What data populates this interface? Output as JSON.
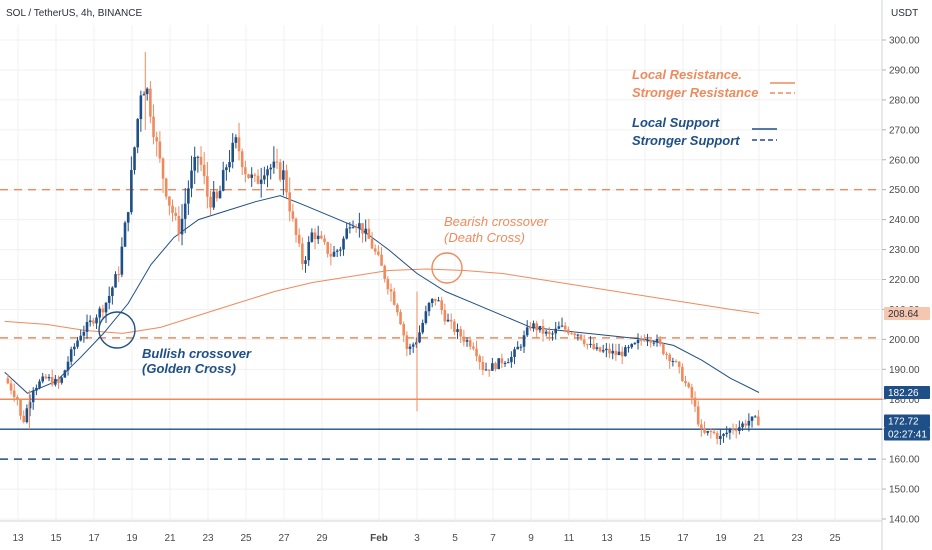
{
  "header": {
    "symbol": "SOL / TetherUS, 4h, BINANCE",
    "axis_unit": "USDT"
  },
  "chart_data": {
    "type": "candlestick",
    "ylim": [
      135,
      305
    ],
    "y_ticks": [
      140,
      150,
      160,
      170,
      180,
      190,
      200,
      210,
      220,
      230,
      240,
      250,
      260,
      270,
      280,
      290,
      300
    ],
    "y_tick_labels": [
      "140.00",
      "150.00",
      "160.00",
      "170.00",
      "180.00",
      "190.00",
      "200.00",
      "210.00",
      "220.00",
      "230.00",
      "240.00",
      "250.00",
      "260.00",
      "270.00",
      "280.00",
      "290.00",
      "300.00"
    ],
    "x_ticks": [
      {
        "label": "13",
        "day": 0
      },
      {
        "label": "15",
        "day": 2
      },
      {
        "label": "17",
        "day": 4
      },
      {
        "label": "19",
        "day": 6
      },
      {
        "label": "21",
        "day": 8
      },
      {
        "label": "23",
        "day": 10
      },
      {
        "label": "25",
        "day": 12
      },
      {
        "label": "27",
        "day": 14
      },
      {
        "label": "29",
        "day": 16
      },
      {
        "label": "Feb",
        "day": 19
      },
      {
        "label": "3",
        "day": 21
      },
      {
        "label": "5",
        "day": 23
      },
      {
        "label": "7",
        "day": 25
      },
      {
        "label": "9",
        "day": 27
      },
      {
        "label": "11",
        "day": 29
      },
      {
        "label": "13",
        "day": 31
      },
      {
        "label": "15",
        "day": 33
      },
      {
        "label": "17",
        "day": 35
      },
      {
        "label": "19",
        "day": 37
      },
      {
        "label": "21",
        "day": 39
      },
      {
        "label": "23",
        "day": 41
      },
      {
        "label": "25",
        "day": 43
      }
    ],
    "daily_closes": [
      {
        "day": -0.7,
        "price": 187
      },
      {
        "day": 0.0,
        "price": 180
      },
      {
        "day": 0.2,
        "price": 171
      },
      {
        "day": 0.8,
        "price": 184
      },
      {
        "day": 1.5,
        "price": 187
      },
      {
        "day": 2.2,
        "price": 185
      },
      {
        "day": 2.7,
        "price": 194
      },
      {
        "day": 3.3,
        "price": 202
      },
      {
        "day": 4.0,
        "price": 207
      },
      {
        "day": 4.7,
        "price": 213
      },
      {
        "day": 5.3,
        "price": 223
      },
      {
        "day": 5.8,
        "price": 245
      },
      {
        "day": 6.2,
        "price": 268
      },
      {
        "day": 6.5,
        "price": 285
      },
      {
        "day": 6.8,
        "price": 283
      },
      {
        "day": 7.2,
        "price": 268
      },
      {
        "day": 7.5,
        "price": 258
      },
      {
        "day": 8.0,
        "price": 245
      },
      {
        "day": 8.5,
        "price": 236
      },
      {
        "day": 9.0,
        "price": 252
      },
      {
        "day": 9.5,
        "price": 262
      },
      {
        "day": 10.0,
        "price": 247
      },
      {
        "day": 10.5,
        "price": 246
      },
      {
        "day": 11.0,
        "price": 259
      },
      {
        "day": 11.5,
        "price": 266
      },
      {
        "day": 12.0,
        "price": 256
      },
      {
        "day": 12.5,
        "price": 252
      },
      {
        "day": 13.0,
        "price": 258
      },
      {
        "day": 13.5,
        "price": 257
      },
      {
        "day": 14.0,
        "price": 255
      },
      {
        "day": 14.5,
        "price": 238
      },
      {
        "day": 15.0,
        "price": 225
      },
      {
        "day": 15.5,
        "price": 236
      },
      {
        "day": 16.0,
        "price": 232
      },
      {
        "day": 16.5,
        "price": 228
      },
      {
        "day": 17.0,
        "price": 231
      },
      {
        "day": 17.5,
        "price": 240
      },
      {
        "day": 18.0,
        "price": 238
      },
      {
        "day": 18.5,
        "price": 233
      },
      {
        "day": 19.0,
        "price": 226
      },
      {
        "day": 19.5,
        "price": 218
      },
      {
        "day": 20.0,
        "price": 210
      },
      {
        "day": 20.5,
        "price": 196
      },
      {
        "day": 21.0,
        "price": 200
      },
      {
        "day": 21.6,
        "price": 211
      },
      {
        "day": 22.0,
        "price": 214
      },
      {
        "day": 22.5,
        "price": 207
      },
      {
        "day": 23.0,
        "price": 203
      },
      {
        "day": 23.5,
        "price": 200
      },
      {
        "day": 24.0,
        "price": 198
      },
      {
        "day": 24.5,
        "price": 190
      },
      {
        "day": 25.0,
        "price": 191
      },
      {
        "day": 25.5,
        "price": 193
      },
      {
        "day": 26.0,
        "price": 194
      },
      {
        "day": 26.5,
        "price": 199
      },
      {
        "day": 27.0,
        "price": 205
      },
      {
        "day": 27.5,
        "price": 203
      },
      {
        "day": 28.0,
        "price": 201
      },
      {
        "day": 28.5,
        "price": 204
      },
      {
        "day": 29.0,
        "price": 203
      },
      {
        "day": 29.5,
        "price": 202
      },
      {
        "day": 30.0,
        "price": 198
      },
      {
        "day": 30.5,
        "price": 196
      },
      {
        "day": 31.0,
        "price": 196
      },
      {
        "day": 31.5,
        "price": 195
      },
      {
        "day": 32.0,
        "price": 196
      },
      {
        "day": 32.5,
        "price": 198
      },
      {
        "day": 33.0,
        "price": 201
      },
      {
        "day": 33.5,
        "price": 200
      },
      {
        "day": 34.0,
        "price": 196
      },
      {
        "day": 34.5,
        "price": 193
      },
      {
        "day": 35.0,
        "price": 187
      },
      {
        "day": 35.5,
        "price": 180
      },
      {
        "day": 36.0,
        "price": 168
      },
      {
        "day": 36.5,
        "price": 169
      },
      {
        "day": 37.0,
        "price": 167
      },
      {
        "day": 37.5,
        "price": 170
      },
      {
        "day": 38.0,
        "price": 171
      },
      {
        "day": 38.5,
        "price": 173
      },
      {
        "day": 39.0,
        "price": 172.7
      }
    ],
    "ma_fast": [
      {
        "day": -0.7,
        "price": 189
      },
      {
        "day": 0.5,
        "price": 182
      },
      {
        "day": 2.0,
        "price": 186
      },
      {
        "day": 3.3,
        "price": 194
      },
      {
        "day": 4.5,
        "price": 202
      },
      {
        "day": 5.8,
        "price": 212
      },
      {
        "day": 7.0,
        "price": 225
      },
      {
        "day": 8.2,
        "price": 234
      },
      {
        "day": 9.5,
        "price": 240
      },
      {
        "day": 11.0,
        "price": 243
      },
      {
        "day": 12.5,
        "price": 246
      },
      {
        "day": 13.8,
        "price": 248
      },
      {
        "day": 15.0,
        "price": 245
      },
      {
        "day": 16.5,
        "price": 241
      },
      {
        "day": 18.0,
        "price": 237
      },
      {
        "day": 19.5,
        "price": 230
      },
      {
        "day": 21.0,
        "price": 222
      },
      {
        "day": 22.5,
        "price": 216
      },
      {
        "day": 24.0,
        "price": 212
      },
      {
        "day": 25.5,
        "price": 208
      },
      {
        "day": 27.0,
        "price": 204
      },
      {
        "day": 28.5,
        "price": 203
      },
      {
        "day": 30.0,
        "price": 202
      },
      {
        "day": 31.5,
        "price": 201
      },
      {
        "day": 33.0,
        "price": 200
      },
      {
        "day": 34.5,
        "price": 198
      },
      {
        "day": 36.0,
        "price": 193
      },
      {
        "day": 37.5,
        "price": 187
      },
      {
        "day": 39.0,
        "price": 182.26
      }
    ],
    "ma_slow": [
      {
        "day": -0.7,
        "price": 206
      },
      {
        "day": 1.5,
        "price": 205
      },
      {
        "day": 3.5,
        "price": 203
      },
      {
        "day": 5.5,
        "price": 202
      },
      {
        "day": 7.5,
        "price": 204
      },
      {
        "day": 9.5,
        "price": 208
      },
      {
        "day": 11.5,
        "price": 212
      },
      {
        "day": 13.5,
        "price": 216
      },
      {
        "day": 15.5,
        "price": 219
      },
      {
        "day": 17.5,
        "price": 221
      },
      {
        "day": 19.5,
        "price": 223
      },
      {
        "day": 21.5,
        "price": 223.5
      },
      {
        "day": 23.5,
        "price": 223
      },
      {
        "day": 25.5,
        "price": 222
      },
      {
        "day": 27.5,
        "price": 220
      },
      {
        "day": 29.5,
        "price": 218
      },
      {
        "day": 31.5,
        "price": 216
      },
      {
        "day": 33.5,
        "price": 214
      },
      {
        "day": 35.5,
        "price": 212
      },
      {
        "day": 37.5,
        "price": 210
      },
      {
        "day": 39.0,
        "price": 208.64
      }
    ],
    "horizontal_levels": [
      {
        "price": 250,
        "style": "dashed",
        "color": "#f08a5d"
      },
      {
        "price": 200.5,
        "style": "dashed",
        "color": "#f08a5d"
      },
      {
        "price": 180,
        "style": "solid",
        "color": "#f08a5d"
      },
      {
        "price": 170,
        "style": "solid",
        "color": "#1e4f86"
      },
      {
        "price": 160,
        "style": "dashed",
        "color": "#1e4f86"
      }
    ],
    "price_badges": [
      {
        "value": "208.64",
        "price": 208.64,
        "bg": "#f6c7b0",
        "fg": "#2a2e39"
      },
      {
        "value": "182.26",
        "price": 182.26,
        "bg": "#1e4f86",
        "fg": "#ffffff"
      },
      {
        "value": "172.72",
        "price": 172.72,
        "bg": "#1e4f86",
        "fg": "#ffffff"
      },
      {
        "value": "02:27:41",
        "price": 172.72,
        "bg": "#1e4f86",
        "fg": "#ffffff"
      }
    ],
    "legend": [
      {
        "label": "Local Resistance.",
        "color": "#f08a5d",
        "line": "solid"
      },
      {
        "label": "Stronger Resistance",
        "color": "#f08a5d",
        "line": "dashed"
      },
      {
        "label": "Local Support",
        "color": "#1e4f86",
        "line": "solid"
      },
      {
        "label": "Stronger Support",
        "color": "#1e4f86",
        "line": "dashed"
      }
    ],
    "annotations": [
      {
        "line1": "Bullish crossover",
        "line2": "(Golden Cross)",
        "color": "#1e4f86"
      },
      {
        "line1": "Bearish crossover",
        "line2": "(Death Cross)",
        "color": "#f08a5d"
      }
    ],
    "colors": {
      "up": "#1e4f86",
      "down": "#f08a5d",
      "ma_fast": "#1e4f86",
      "ma_slow": "#f08a5d",
      "grid": "#f0f0f0"
    }
  }
}
